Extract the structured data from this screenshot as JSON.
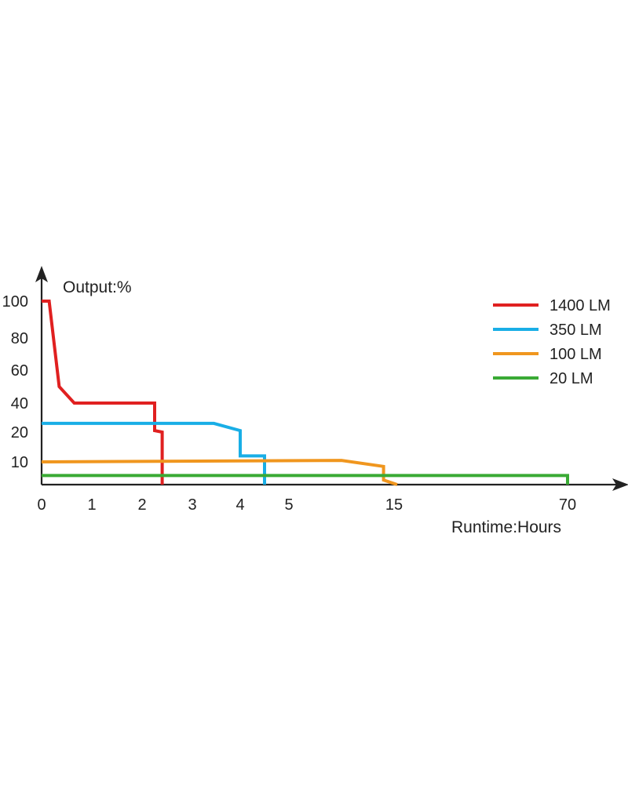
{
  "chart_data": {
    "type": "line",
    "ylabel": "Output:%",
    "xlabel": "Runtime:Hours",
    "x_ticks": [
      "0",
      "1",
      "2",
      "3",
      "4",
      "5",
      "15",
      "70"
    ],
    "y_ticks": [
      "100",
      "80",
      "60",
      "40",
      "20",
      "10"
    ],
    "legend_position": "top-right",
    "grid": false,
    "series": [
      {
        "name": "1400 LM",
        "color": "#e02020",
        "points": [
          {
            "x": "0",
            "y": 100
          },
          {
            "x": "0.15",
            "y": 100
          },
          {
            "x": "0.35",
            "y": 50
          },
          {
            "x": "0.65",
            "y": 40
          },
          {
            "x": "2.25",
            "y": 40
          },
          {
            "x": "2.25",
            "y": 21
          },
          {
            "x": "2.4",
            "y": 20
          },
          {
            "x": "2.4",
            "y": 0
          }
        ]
      },
      {
        "name": "350 LM",
        "color": "#19aee6",
        "points": [
          {
            "x": "0",
            "y": 26
          },
          {
            "x": "3.45",
            "y": 26
          },
          {
            "x": "4",
            "y": 21
          },
          {
            "x": "4",
            "y": 12
          },
          {
            "x": "4.5",
            "y": 12
          },
          {
            "x": "4.5",
            "y": 0
          }
        ]
      },
      {
        "name": "100 LM",
        "color": "#f0961e",
        "points": [
          {
            "x": "0",
            "y": 10
          },
          {
            "x": "10",
            "y": 10.5
          },
          {
            "x": "14",
            "y": 8
          },
          {
            "x": "14",
            "y": 2
          },
          {
            "x": "16",
            "y": 0
          }
        ]
      },
      {
        "name": "20 LM",
        "color": "#3aaa35",
        "points": [
          {
            "x": "0",
            "y": 4
          },
          {
            "x": "70",
            "y": 4
          },
          {
            "x": "70",
            "y": 0
          }
        ]
      }
    ]
  }
}
